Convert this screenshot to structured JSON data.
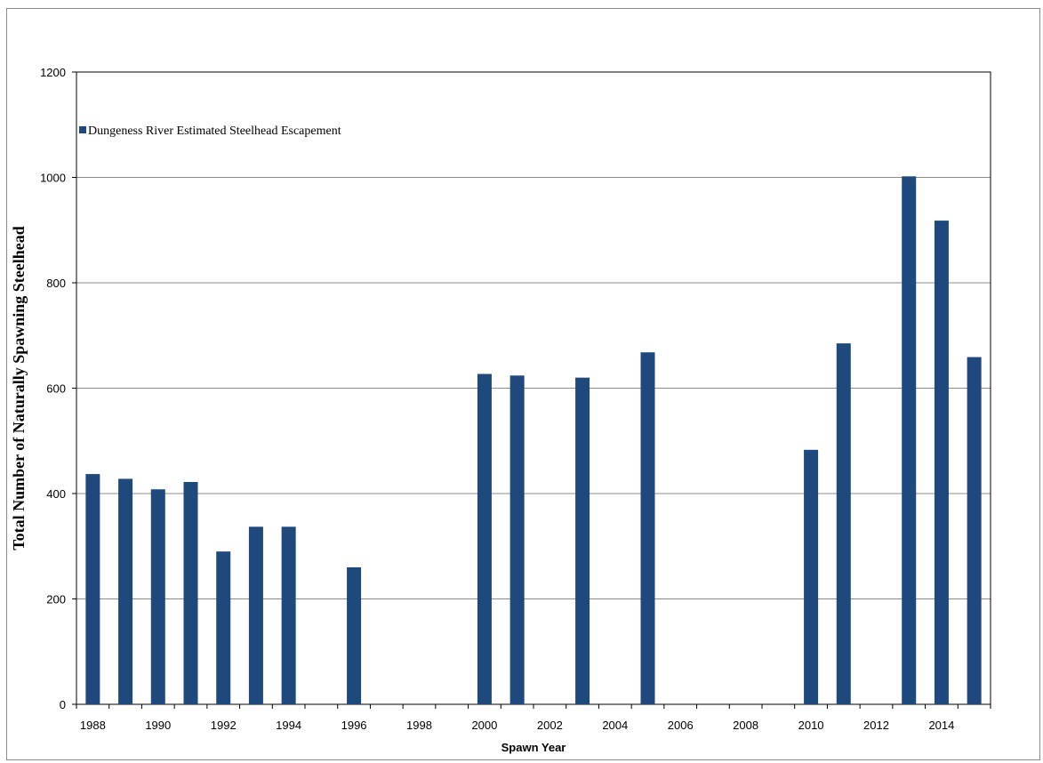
{
  "chart_data": {
    "type": "bar",
    "title": "",
    "xlabel": "Spawn Year",
    "ylabel": "Total Number of Naturally Spawning Steelhead",
    "ylim": [
      0,
      1200
    ],
    "yticks": [
      0,
      200,
      400,
      600,
      800,
      1000,
      1200
    ],
    "x_first": 1988,
    "x_last": 2015,
    "xticks": [
      1988,
      1990,
      1992,
      1994,
      1996,
      1998,
      2000,
      2002,
      2004,
      2006,
      2008,
      2010,
      2012,
      2014
    ],
    "grid": "horizontal",
    "legend_position": "top-left",
    "series": [
      {
        "name": "Dungeness River Estimated Steelhead Escapement",
        "color": "#1f497d",
        "points": [
          {
            "x": 1988,
            "y": 437
          },
          {
            "x": 1989,
            "y": 428
          },
          {
            "x": 1990,
            "y": 408
          },
          {
            "x": 1991,
            "y": 422
          },
          {
            "x": 1992,
            "y": 290
          },
          {
            "x": 1993,
            "y": 337
          },
          {
            "x": 1994,
            "y": 337
          },
          {
            "x": 1996,
            "y": 260
          },
          {
            "x": 2000,
            "y": 627
          },
          {
            "x": 2001,
            "y": 624
          },
          {
            "x": 2003,
            "y": 620
          },
          {
            "x": 2005,
            "y": 668
          },
          {
            "x": 2010,
            "y": 483
          },
          {
            "x": 2011,
            "y": 685
          },
          {
            "x": 2013,
            "y": 1002
          },
          {
            "x": 2014,
            "y": 918
          },
          {
            "x": 2015,
            "y": 659
          }
        ]
      }
    ]
  }
}
